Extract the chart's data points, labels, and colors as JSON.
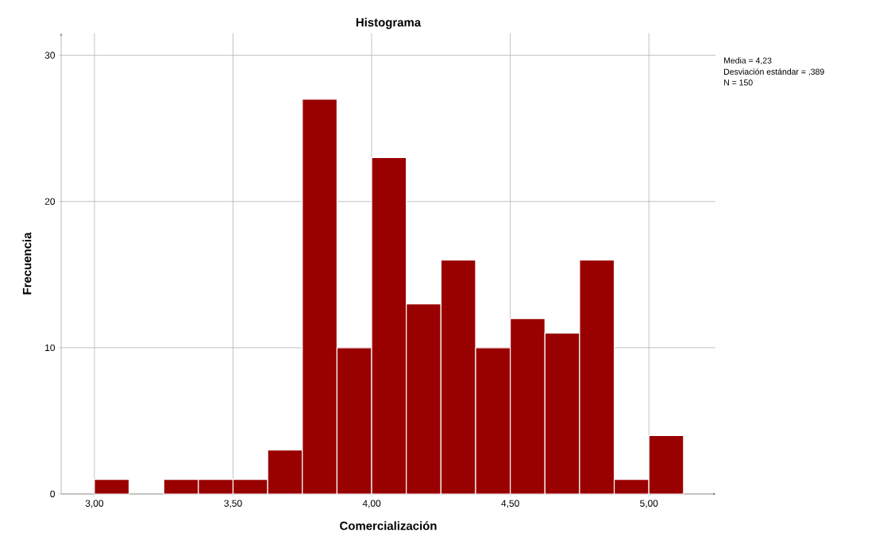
{
  "chart_data": {
    "type": "histogram",
    "title": "Histograma",
    "xlabel": "Comercialización",
    "ylabel": "Frecuencia",
    "bins": [
      3.0,
      3.125,
      3.25,
      3.375,
      3.5,
      3.625,
      3.75,
      3.875,
      4.0,
      4.125,
      4.25,
      4.375,
      4.5,
      4.625,
      4.75,
      4.875,
      5.0,
      5.125
    ],
    "values": [
      1,
      0,
      1,
      1,
      1,
      3,
      27,
      10,
      23,
      13,
      16,
      10,
      12,
      11,
      16,
      1,
      4
    ],
    "color": "#990000",
    "xlim": [
      2.88,
      5.24
    ],
    "ylim": [
      0,
      31.5
    ],
    "xticks": [
      {
        "value": 3.0,
        "label": "3,00"
      },
      {
        "value": 3.5,
        "label": "3,50"
      },
      {
        "value": 4.0,
        "label": "4,00"
      },
      {
        "value": 4.5,
        "label": "4,50"
      },
      {
        "value": 5.0,
        "label": "5,00"
      }
    ],
    "yticks": [
      0,
      10,
      20,
      30
    ],
    "grid": true,
    "annotations": [
      "Media = 4,23",
      "Desviación estándar = ,389",
      "N = 150"
    ]
  }
}
